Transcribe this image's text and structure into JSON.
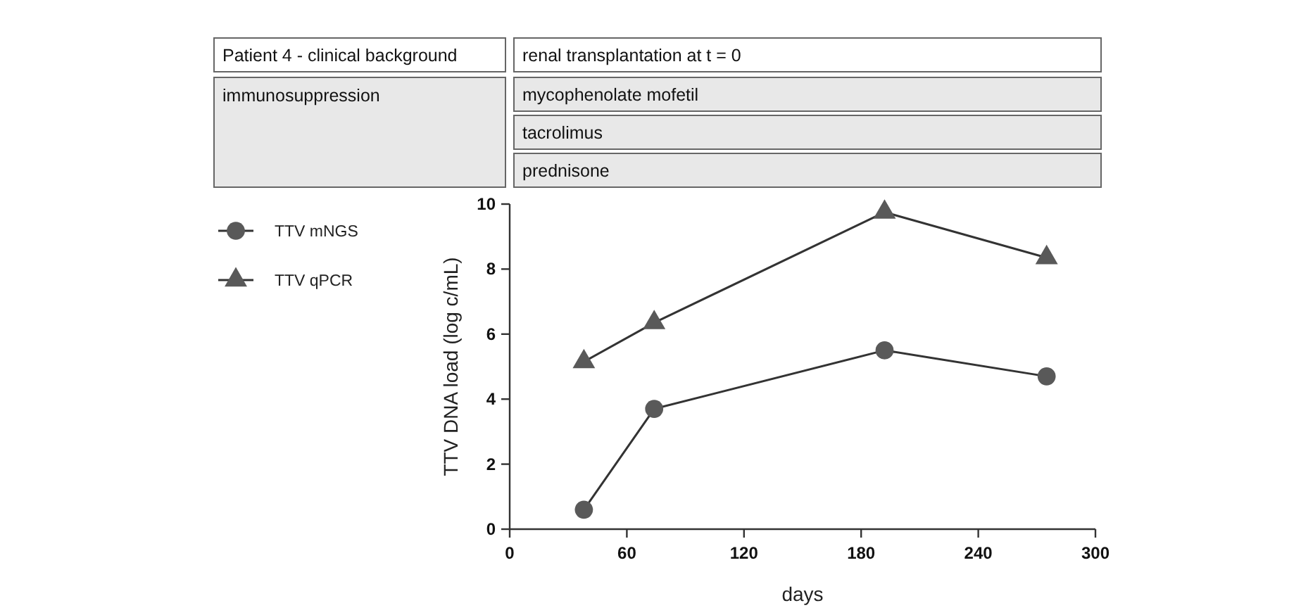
{
  "chart_data": {
    "type": "line",
    "xlabel": "days",
    "ylabel": "TTV DNA load (log c/mL)",
    "annotations": [
      "Patient 4 - clinical background",
      "renal transplantation at t = 0",
      "immunosuppression",
      "mycophenolate mofetil",
      "tacrolimus",
      "prednisone"
    ],
    "series": [
      {
        "name": "TTV mNGS",
        "color": "#595959",
        "marker": "circle",
        "x": [
          38,
          74,
          192,
          275
        ],
        "values": [
          0.6,
          3.7,
          5.5,
          4.7
        ]
      },
      {
        "name": "TTV qPCR",
        "color": "#595959",
        "marker": "triangle",
        "x": [
          38,
          74,
          192,
          275
        ],
        "values": [
          5.15,
          6.35,
          9.75,
          8.35
        ]
      }
    ],
    "xlim": [
      0,
      300
    ],
    "xticks": [
      0,
      60,
      120,
      180,
      240,
      300
    ],
    "ylim": [
      0,
      10
    ],
    "yticks": [
      0,
      2,
      4,
      6,
      8,
      10
    ],
    "grid": false,
    "legend": "top left",
    "line_style": "solid"
  }
}
